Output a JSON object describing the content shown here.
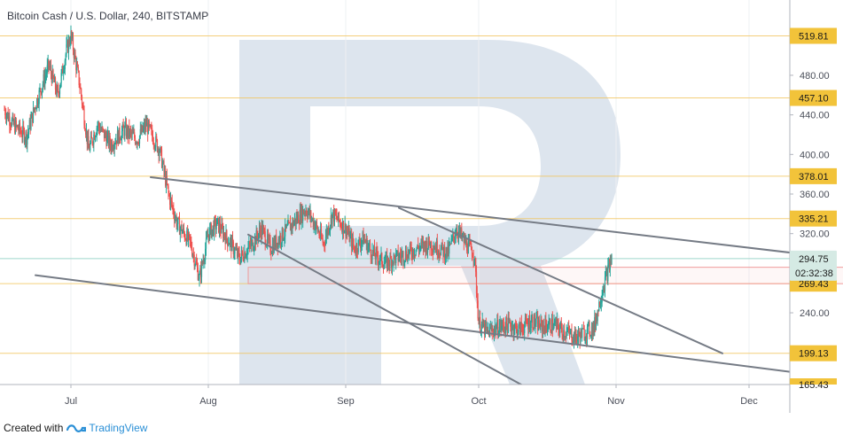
{
  "header": {
    "title": "Bitcoin Cash / U.S. Dollar, 240, BITSTAMP"
  },
  "footer": {
    "created_label": "Created with",
    "brand": "TradingView"
  },
  "colors": {
    "up": "#26a69a",
    "down": "#ef5350",
    "trendline": "#757b85",
    "level_line": "#f2c45b",
    "level_tag": "#f2c33a",
    "last_price_tag": "#d5eae4",
    "zone": "#ef9a9a",
    "watermark": "#dde5ee"
  },
  "chart_data": {
    "type": "candlestick",
    "title": "Bitcoin Cash / U.S. Dollar, 240, BITSTAMP",
    "x_ticks": [
      "Jul",
      "Aug",
      "Sep",
      "Oct",
      "Nov",
      "Dec"
    ],
    "y_ticks": [
      480.0,
      440.0,
      400.0,
      360.0,
      320.0,
      240.0
    ],
    "y_range": [
      165.43,
      540
    ],
    "levels": [
      {
        "value": 519.81,
        "label": "519.81"
      },
      {
        "value": 457.1,
        "label": "457.10"
      },
      {
        "value": 378.01,
        "label": "378.01"
      },
      {
        "value": 335.21,
        "label": "335.21"
      },
      {
        "value": 269.43,
        "label": "269.43"
      },
      {
        "value": 199.13,
        "label": "199.13"
      }
    ],
    "bottom_label": "165.43",
    "last_price": {
      "value": 294.75,
      "label": "294.75",
      "countdown": "02:32:38"
    },
    "price_path": [
      [
        "Jun 16",
        445
      ],
      [
        "Jun 18",
        430
      ],
      [
        "Jun 21",
        418
      ],
      [
        "Jun 23",
        450
      ],
      [
        "Jun 26",
        490
      ],
      [
        "Jun 28",
        460
      ],
      [
        "Jun 30",
        505
      ],
      [
        "Jul 1",
        520
      ],
      [
        "Jul 3",
        470
      ],
      [
        "Jul 5",
        405
      ],
      [
        "Jul 7",
        430
      ],
      [
        "Jul 10",
        410
      ],
      [
        "Jul 13",
        425
      ],
      [
        "Jul 16",
        415
      ],
      [
        "Jul 18",
        430
      ],
      [
        "Jul 21",
        405
      ],
      [
        "Jul 23",
        360
      ],
      [
        "Jul 25",
        330
      ],
      [
        "Jul 28",
        310
      ],
      [
        "Jul 30",
        275
      ],
      [
        "Aug 1",
        320
      ],
      [
        "Aug 3",
        330
      ],
      [
        "Aug 6",
        310
      ],
      [
        "Aug 8",
        295
      ],
      [
        "Aug 11",
        310
      ],
      [
        "Aug 13",
        325
      ],
      [
        "Aug 15",
        305
      ],
      [
        "Aug 18",
        320
      ],
      [
        "Aug 20",
        330
      ],
      [
        "Aug 23",
        345
      ],
      [
        "Aug 25",
        330
      ],
      [
        "Aug 27",
        310
      ],
      [
        "Aug 29",
        340
      ],
      [
        "Sep 1",
        325
      ],
      [
        "Sep 3",
        305
      ],
      [
        "Sep 5",
        315
      ],
      [
        "Sep 7",
        300
      ],
      [
        "Sep 10",
        290
      ],
      [
        "Sep 12",
        295
      ],
      [
        "Sep 15",
        300
      ],
      [
        "Sep 17",
        305
      ],
      [
        "Sep 20",
        310
      ],
      [
        "Sep 22",
        305
      ],
      [
        "Sep 24",
        300
      ],
      [
        "Sep 26",
        325
      ],
      [
        "Sep 28",
        310
      ],
      [
        "Sep 30",
        300
      ],
      [
        "Oct 1",
        230
      ],
      [
        "Oct 3",
        220
      ],
      [
        "Oct 5",
        225
      ],
      [
        "Oct 8",
        228
      ],
      [
        "Oct 10",
        223
      ],
      [
        "Oct 13",
        232
      ],
      [
        "Oct 15",
        226
      ],
      [
        "Oct 18",
        228
      ],
      [
        "Oct 20",
        222
      ],
      [
        "Oct 23",
        215
      ],
      [
        "Oct 25",
        220
      ],
      [
        "Oct 27",
        225
      ],
      [
        "Oct 28",
        245
      ],
      [
        "Oct 29",
        265
      ],
      [
        "Oct 30",
        280
      ],
      [
        "Oct 31",
        294.75
      ]
    ],
    "support_resistance_zone": {
      "from": "Aug 10",
      "to": "Dec 27",
      "top": 286,
      "bottom": 269.43
    },
    "trendlines": [
      {
        "from": [
          "Jul 19",
          377
        ],
        "to": [
          "Dec 27",
          292
        ]
      },
      {
        "from": [
          "Jun 23",
          278
        ],
        "to": [
          "Dec 23",
          173
        ]
      },
      {
        "from": [
          "Aug 10",
          319
        ],
        "to": [
          "Oct 12",
          164
        ]
      },
      {
        "from": [
          "Sep 13",
          346
        ],
        "to": [
          "Nov 25",
          199
        ]
      }
    ]
  }
}
